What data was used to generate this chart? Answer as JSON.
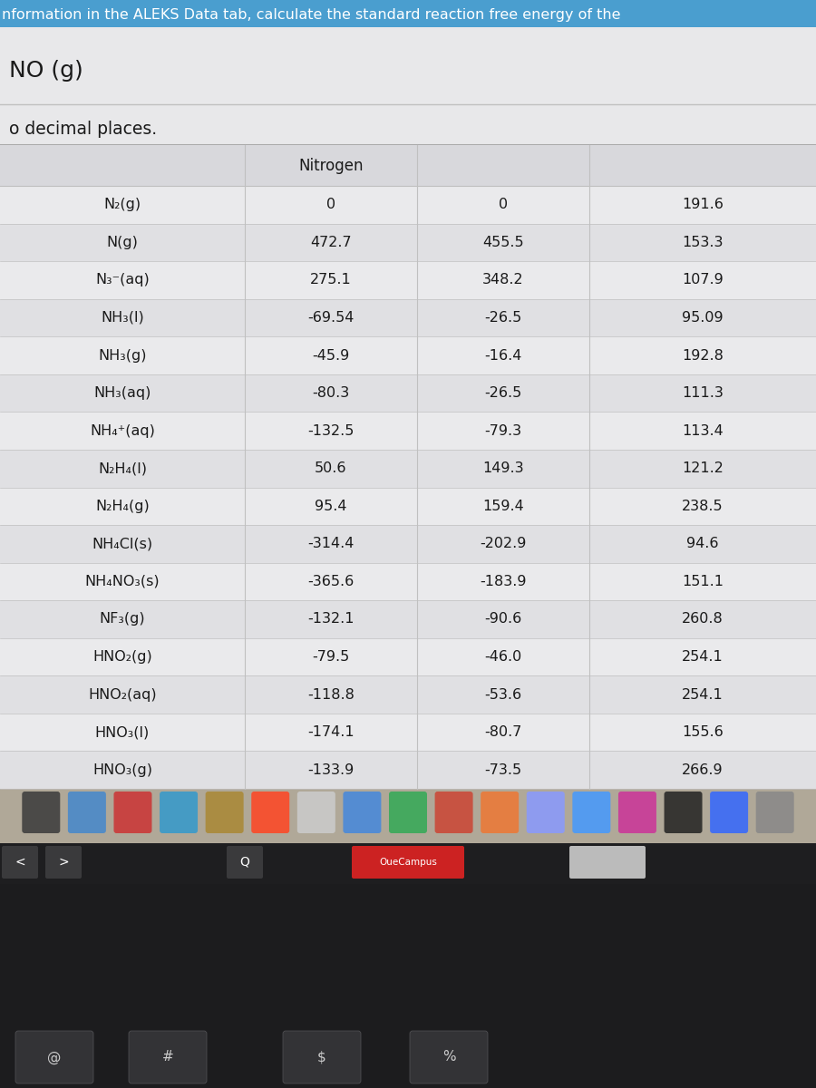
{
  "header_text1": "nformation in the ALEKS Data tab, calculate the standard reaction free energy of the",
  "header_text2": "NO (g)",
  "header_text3": "o decimal places.",
  "col_header": "Nitrogen",
  "compounds": [
    "N₂(g)",
    "N(g)",
    "N₃⁻(aq)",
    "NH₃(l)",
    "NH₃(g)",
    "NH₃(aq)",
    "NH₄⁺(aq)",
    "N₂H₄(l)",
    "N₂H₄(g)",
    "NH₄Cl(s)",
    "NH₄NO₃(s)",
    "NF₃(g)",
    "HNO₂(g)",
    "HNO₂(aq)",
    "HNO₃(l)",
    "HNO₃(g)"
  ],
  "col1_str": [
    "0",
    "472.7",
    "275.1",
    "-69.54",
    "-45.9",
    "-80.3",
    "-132.5",
    "50.6",
    "95.4",
    "-314.4",
    "-365.6",
    "-132.1",
    "-79.5",
    "-118.8",
    "-174.1",
    "-133.9"
  ],
  "col2_str": [
    "0",
    "455.5",
    "348.2",
    "-26.5",
    "-16.4",
    "-26.5",
    "-79.3",
    "149.3",
    "159.4",
    "-202.9",
    "-183.9",
    "-90.6",
    "-46.0",
    "-53.6",
    "-80.7",
    "-73.5"
  ],
  "col3_str": [
    "191.6",
    "153.3",
    "107.9",
    "95.09",
    "192.8",
    "111.3",
    "113.4",
    "121.2",
    "238.5",
    "94.6",
    "151.1",
    "260.8",
    "254.1",
    "254.1",
    "155.6",
    "266.9"
  ],
  "blue_bar_color": "#4a9ecf",
  "header_bg_color": "#e8e8ea",
  "table_bg_light": "#eaeaec",
  "table_bg_alt": "#e0e0e3",
  "table_header_bg": "#d8d8dc",
  "dock_bg": "#b0a898",
  "keyboard_bg": "#1c1c1e",
  "touchbar_bg": "#2a2a2c",
  "text_dark": "#1a1a1a",
  "text_white": "#ffffff",
  "separator_color": "#c0c0c0"
}
